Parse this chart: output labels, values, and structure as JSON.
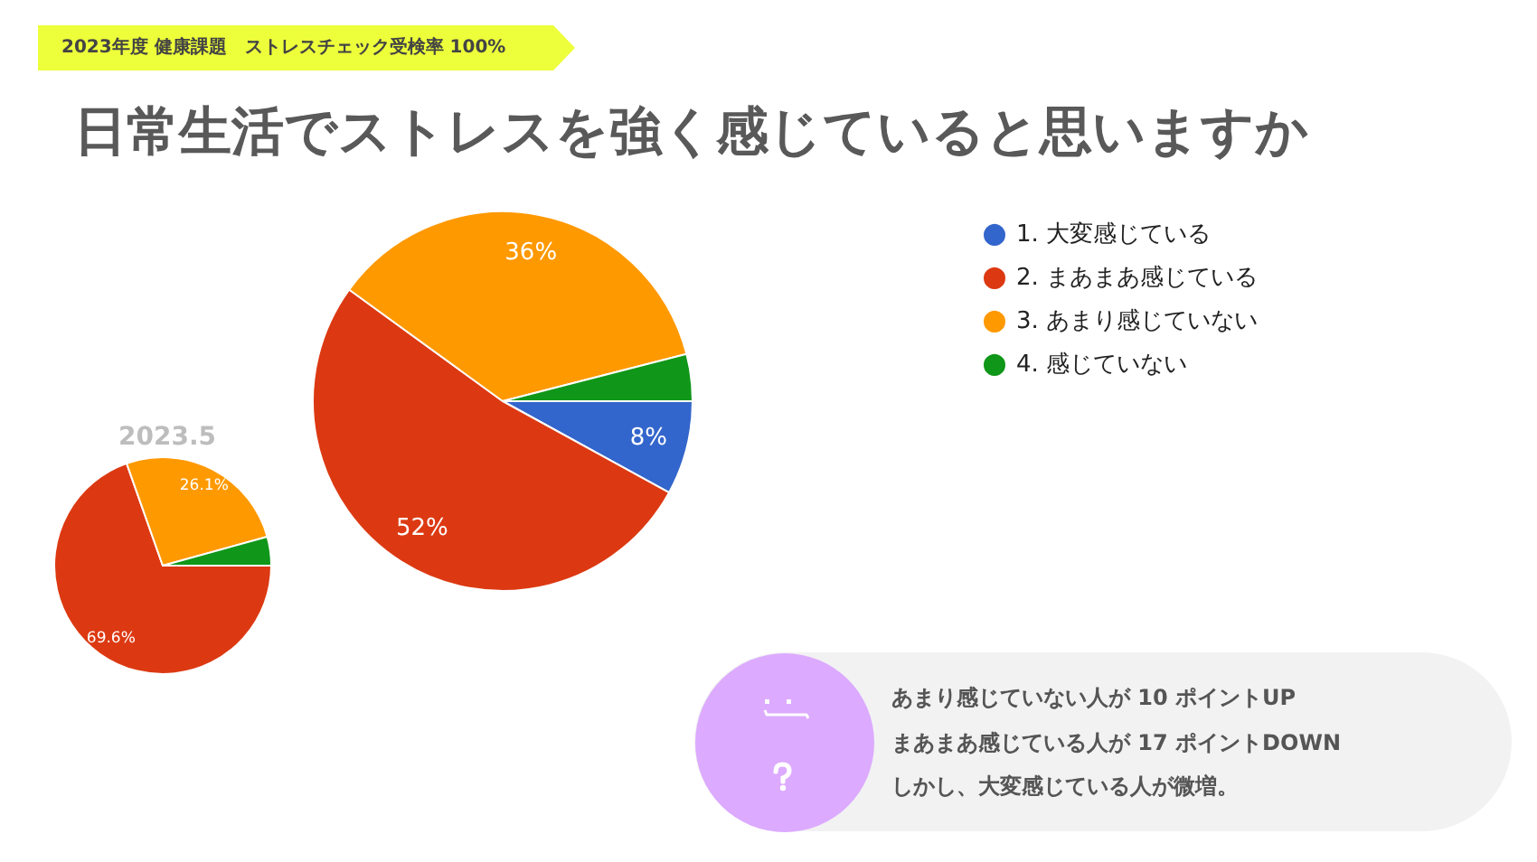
{
  "chart_data": [
    {
      "type": "pie",
      "title": "日常生活でストレスを強く感じていると思いますか",
      "subtitle": "2023年度 健康課題　ストレスチェック受検率 100%",
      "categories": [
        "1. 大変感じている",
        "2. まあまあ感じている",
        "3. あまり感じていない",
        "4. 感じていない"
      ],
      "values": [
        8,
        52,
        36,
        4
      ],
      "colors": [
        "#3366cc",
        "#dc3912",
        "#ff9900",
        "#109618"
      ],
      "value_labels": [
        "8%",
        "52%",
        "36%",
        null
      ],
      "legend": "top right",
      "annotations": [
        "あまり感じていない人が 10 ポイントUP",
        "まあまあ感じている人が 17 ポイントDOWN",
        "しかし、大変感じている人が微増。"
      ]
    },
    {
      "type": "pie",
      "title": "2023.5",
      "categories": [
        null,
        null,
        null
      ],
      "values": [
        69.6,
        26.1,
        4.3
      ],
      "colors": [
        "#dc3912",
        "#ff9900",
        "#109618"
      ],
      "value_labels": [
        "69.6%",
        "26.1%",
        null
      ]
    }
  ]
}
